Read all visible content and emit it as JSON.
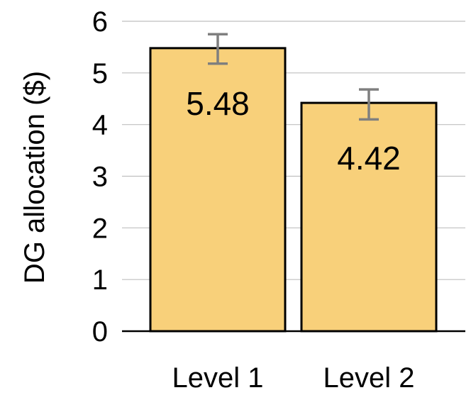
{
  "chart_data": {
    "type": "bar",
    "title": "",
    "xlabel": "",
    "ylabel": "DG allocation ($)",
    "categories": [
      "Level 1",
      "Level 2"
    ],
    "values": [
      5.48,
      4.42
    ],
    "data_labels": [
      "5.48",
      "4.42"
    ],
    "error_bars": [
      {
        "low": 5.18,
        "high": 5.75
      },
      {
        "low": 4.1,
        "high": 4.68
      }
    ],
    "ylim": [
      0,
      6
    ],
    "yticks": [
      0,
      1,
      2,
      3,
      4,
      5,
      6
    ],
    "grid": true,
    "legend": "none",
    "bar_color": "#f8d07a",
    "error_color": "#7f7f7f"
  }
}
